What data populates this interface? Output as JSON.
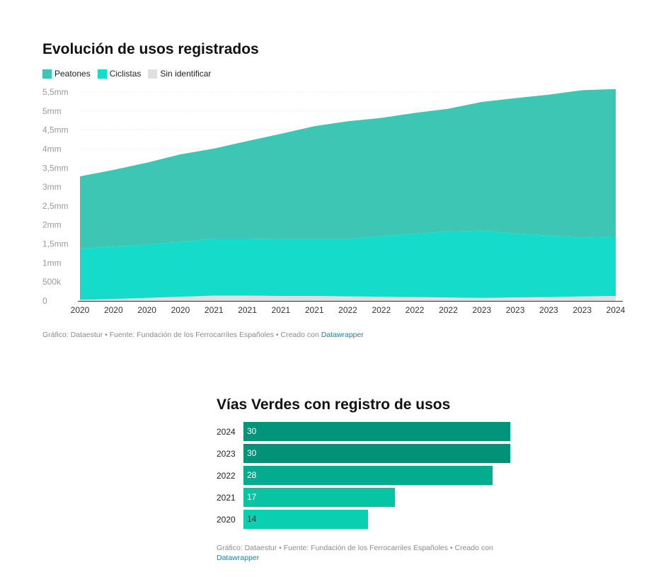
{
  "chart_data": [
    {
      "type": "area",
      "stacked": true,
      "title": "Evolución de usos registrados",
      "legend_position": "top-left",
      "x": [
        "2020",
        "2020",
        "2020",
        "2020",
        "2021",
        "2021",
        "2021",
        "2021",
        "2022",
        "2022",
        "2022",
        "2022",
        "2023",
        "2023",
        "2023",
        "2023",
        "2024"
      ],
      "series": [
        {
          "name": "Sin identificar",
          "color": "#e0e0e0",
          "values": [
            0.03,
            0.05,
            0.08,
            0.11,
            0.14,
            0.14,
            0.13,
            0.13,
            0.12,
            0.11,
            0.1,
            0.09,
            0.08,
            0.09,
            0.1,
            0.12,
            0.13
          ]
        },
        {
          "name": "Ciclistas",
          "color": "#15dbca",
          "values": [
            1.35,
            1.38,
            1.4,
            1.44,
            1.5,
            1.5,
            1.5,
            1.5,
            1.51,
            1.59,
            1.67,
            1.74,
            1.77,
            1.68,
            1.62,
            1.54,
            1.55
          ]
        },
        {
          "name": "Peatones",
          "color": "#3ec6b5",
          "values": [
            1.9,
            2.02,
            2.16,
            2.31,
            2.37,
            2.57,
            2.77,
            2.97,
            3.1,
            3.12,
            3.18,
            3.23,
            3.39,
            3.57,
            3.71,
            3.89,
            3.9
          ]
        }
      ],
      "ylim": [
        0,
        5.5
      ],
      "y_ticks": [
        {
          "v": 0,
          "label": "0"
        },
        {
          "v": 0.5,
          "label": "500k"
        },
        {
          "v": 1,
          "label": "1mm"
        },
        {
          "v": 1.5,
          "label": "1,5mm"
        },
        {
          "v": 2,
          "label": "2mm"
        },
        {
          "v": 2.5,
          "label": "2,5mm"
        },
        {
          "v": 3,
          "label": "3mm"
        },
        {
          "v": 3.5,
          "label": "3,5mm"
        },
        {
          "v": 4,
          "label": "4mm"
        },
        {
          "v": 4.5,
          "label": "4,5mm"
        },
        {
          "v": 5,
          "label": "5mm"
        },
        {
          "v": 5.5,
          "label": "5,5mm"
        }
      ],
      "grid": true,
      "xlabel": "",
      "ylabel": ""
    },
    {
      "type": "bar",
      "orientation": "horizontal",
      "title": "Vías Verdes con registro de usos",
      "categories": [
        "2024",
        "2023",
        "2022",
        "2021",
        "2020"
      ],
      "values": [
        30,
        30,
        28,
        17,
        14
      ],
      "colors": [
        "#009479",
        "#01937a",
        "#02ad8f",
        "#07c5a2",
        "#0bd0b0"
      ],
      "xlim": [
        0,
        30
      ]
    }
  ],
  "footers": {
    "chart1": {
      "prefix": "Gráfico: Dataestur • Fuente: Fundación de los Ferrocarriles Españoles • Creado con ",
      "link": "Datawrapper"
    },
    "chart2": {
      "prefix": "Gráfico: Dataestur • Fuente: Fundación de los Ferrocarriles Españoles • Creado con ",
      "link": "Datawrapper"
    }
  }
}
